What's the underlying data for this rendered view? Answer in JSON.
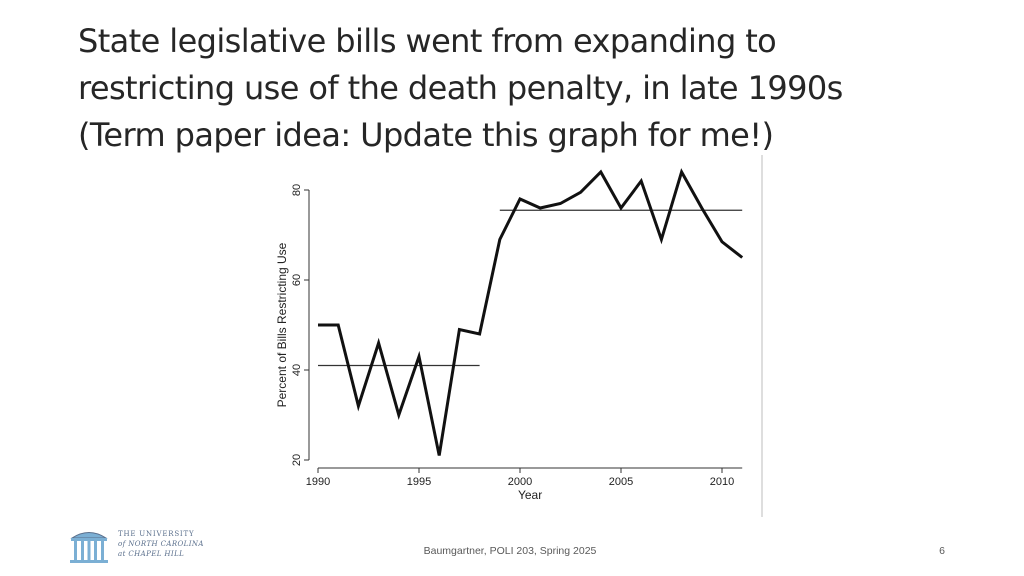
{
  "slide": {
    "title_lines": [
      "State legislative bills went from expanding to",
      "restricting use of the death penalty, in late 1990s",
      "(Term paper idea: Update this graph for me!)"
    ],
    "footer": "Baumgartner, POLI 203, Spring 2025",
    "page_number": "6"
  },
  "logo": {
    "line1": "THE UNIVERSITY",
    "line2": "of NORTH CAROLINA",
    "line3": "at CHAPEL HILL"
  },
  "colors": {
    "title": "#262626",
    "line": "#111111",
    "axis": "#333333",
    "logo": "#5a6f8c"
  },
  "chart_data": {
    "type": "line",
    "title": "",
    "xlabel": "Year",
    "ylabel": "Percent of Bills Restricting Use",
    "xlim": [
      1990,
      2011
    ],
    "ylim": [
      20,
      80
    ],
    "xticks": [
      1990,
      1995,
      2000,
      2005,
      2010
    ],
    "yticks": [
      20,
      40,
      60,
      80
    ],
    "grid": false,
    "series": [
      {
        "name": "Percent of Bills Restricting Use",
        "x": [
          1990,
          1991,
          1992,
          1993,
          1994,
          1995,
          1996,
          1997,
          1998,
          1999,
          2000,
          2001,
          2002,
          2003,
          2004,
          2005,
          2006,
          2007,
          2008,
          2009,
          2010,
          2011
        ],
        "values": [
          50,
          50,
          32,
          46,
          30,
          43,
          21,
          49,
          48,
          69,
          78,
          76,
          77,
          79.5,
          84,
          76,
          82,
          69,
          84,
          76,
          68.5,
          65
        ]
      }
    ],
    "reference_lines": [
      {
        "name": "Mean 1990-1998",
        "x_start": 1990,
        "x_end": 1998,
        "value": 41
      },
      {
        "name": "Mean 1999-2011",
        "x_start": 1999,
        "x_end": 2011,
        "value": 75.5
      }
    ]
  }
}
